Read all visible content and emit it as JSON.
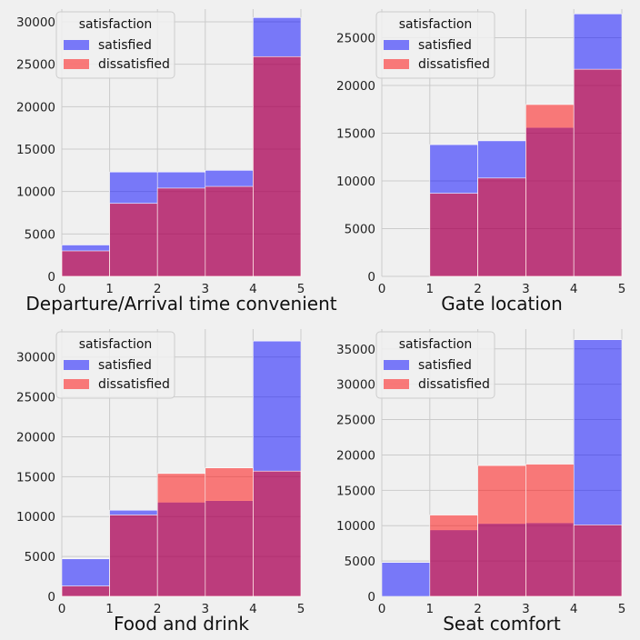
{
  "colors": {
    "background": "#f0f0f0",
    "grid": "#cbcbcb",
    "satisfied": "#0000ff",
    "dissatisfied": "#ff0000",
    "fill_alpha": 0.5
  },
  "chart_data": [
    {
      "type": "bar",
      "xlabel": "Departure/Arrival time convenient",
      "xlim": [
        0,
        5
      ],
      "xticks": [
        0,
        1,
        2,
        3,
        4,
        5
      ],
      "ylim": [
        0,
        31500
      ],
      "yticks": [
        0,
        5000,
        10000,
        15000,
        20000,
        25000,
        30000
      ],
      "bins": [
        [
          0,
          1
        ],
        [
          1,
          2
        ],
        [
          2,
          3
        ],
        [
          3,
          4
        ],
        [
          4,
          5
        ]
      ],
      "legend": {
        "title": "satisfaction",
        "location": "upper-left"
      },
      "series": [
        {
          "name": "satisfied",
          "values": [
            3700,
            12300,
            12300,
            12500,
            30500
          ]
        },
        {
          "name": "dissatisfied",
          "values": [
            3000,
            8600,
            10400,
            10600,
            25900
          ]
        }
      ]
    },
    {
      "type": "bar",
      "xlabel": "Gate location",
      "xlim": [
        0,
        5
      ],
      "xticks": [
        0,
        1,
        2,
        3,
        4,
        5
      ],
      "ylim": [
        0,
        28000
      ],
      "yticks": [
        0,
        5000,
        10000,
        15000,
        20000,
        25000
      ],
      "bins": [
        [
          0,
          1
        ],
        [
          1,
          2
        ],
        [
          2,
          3
        ],
        [
          3,
          4
        ],
        [
          4,
          5
        ]
      ],
      "legend": {
        "title": "satisfaction",
        "location": "upper-left"
      },
      "series": [
        {
          "name": "satisfied",
          "values": [
            0,
            13800,
            14200,
            15600,
            27500
          ]
        },
        {
          "name": "dissatisfied",
          "values": [
            0,
            8700,
            10300,
            18000,
            21700
          ]
        }
      ]
    },
    {
      "type": "bar",
      "xlabel": "Food and drink",
      "xlim": [
        0,
        5
      ],
      "xticks": [
        0,
        1,
        2,
        3,
        4,
        5
      ],
      "ylim": [
        0,
        33500
      ],
      "yticks": [
        0,
        5000,
        10000,
        15000,
        20000,
        25000,
        30000
      ],
      "bins": [
        [
          0,
          1
        ],
        [
          1,
          2
        ],
        [
          2,
          3
        ],
        [
          3,
          4
        ],
        [
          4,
          5
        ]
      ],
      "legend": {
        "title": "satisfaction",
        "location": "upper-left"
      },
      "series": [
        {
          "name": "satisfied",
          "values": [
            4700,
            10800,
            11800,
            12000,
            32000
          ]
        },
        {
          "name": "dissatisfied",
          "values": [
            1300,
            10200,
            15400,
            16100,
            15700
          ]
        }
      ]
    },
    {
      "type": "bar",
      "xlabel": "Seat comfort",
      "xlim": [
        0,
        5
      ],
      "xticks": [
        0,
        1,
        2,
        3,
        4,
        5
      ],
      "ylim": [
        0,
        37800
      ],
      "yticks": [
        0,
        5000,
        10000,
        15000,
        20000,
        25000,
        30000,
        35000
      ],
      "bins": [
        [
          0,
          1
        ],
        [
          1,
          2
        ],
        [
          2,
          3
        ],
        [
          3,
          4
        ],
        [
          4,
          5
        ]
      ],
      "legend": {
        "title": "satisfaction",
        "location": "upper-left"
      },
      "series": [
        {
          "name": "satisfied",
          "values": [
            4800,
            9400,
            10300,
            10400,
            36300
          ]
        },
        {
          "name": "dissatisfied",
          "values": [
            0,
            11500,
            18500,
            18700,
            10100
          ]
        }
      ]
    }
  ]
}
